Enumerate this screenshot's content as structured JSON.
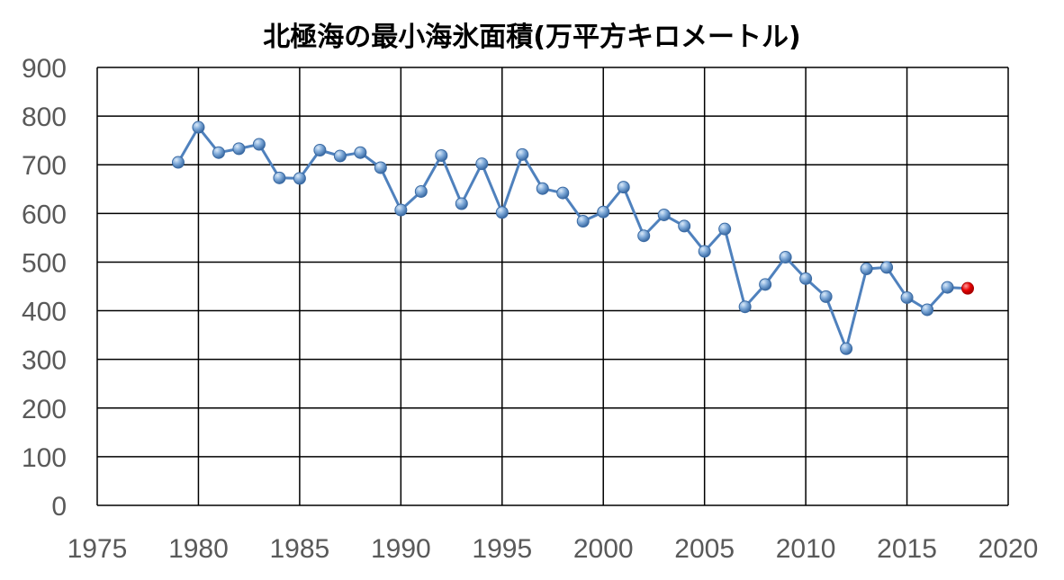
{
  "chart_data": {
    "type": "line",
    "title": "北極海の最小海氷面積(万平方キロメートル)",
    "xlabel": "",
    "ylabel": "",
    "xlim": [
      1975,
      2020
    ],
    "ylim": [
      0,
      900
    ],
    "xticks": [
      "1975",
      "1980",
      "1985",
      "1990",
      "1995",
      "2000",
      "2005",
      "2010",
      "2015",
      "2020"
    ],
    "yticks": [
      "0",
      "100",
      "200",
      "300",
      "400",
      "500",
      "600",
      "700",
      "800",
      "900"
    ],
    "grid": true,
    "legend": "none",
    "series": [
      {
        "x": [
          1979,
          1980,
          1981,
          1982,
          1983,
          1984,
          1985,
          1986,
          1987,
          1988,
          1989,
          1990,
          1991,
          1992,
          1993,
          1994,
          1995,
          1996,
          1997,
          1998,
          1999,
          2000,
          2001,
          2002,
          2003,
          2004,
          2005,
          2006,
          2007,
          2008,
          2009,
          2010,
          2011,
          2012,
          2013,
          2014,
          2015,
          2016,
          2017,
          2018
        ],
        "values": [
          705,
          777,
          725,
          733,
          742,
          673,
          672,
          730,
          718,
          725,
          694,
          607,
          645,
          719,
          620,
          702,
          602,
          721,
          651,
          642,
          584,
          603,
          654,
          554,
          597,
          574,
          522,
          568,
          408,
          454,
          510,
          466,
          429,
          322,
          486,
          489,
          427,
          402,
          448,
          446
        ],
        "color": "#4f81bd",
        "highlight_color": "#e00000"
      }
    ]
  }
}
